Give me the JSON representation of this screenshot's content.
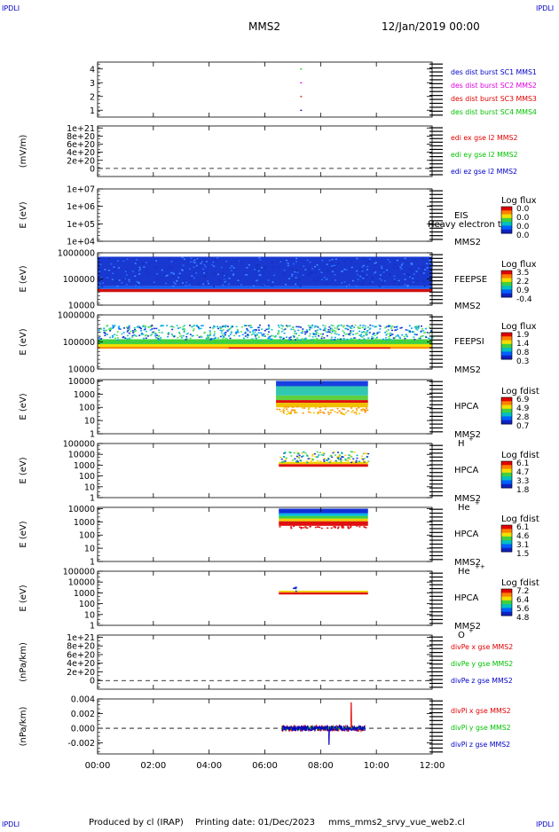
{
  "header": {
    "corner_left": "IPDLI",
    "corner_right": "IPDLI",
    "spacecraft": "MMS2",
    "date": "12/Jan/2019 00:00"
  },
  "footer": {
    "corner_left": "IPDLI",
    "corner_right": "IPDLI",
    "credit": "Produced by cl (IRAP)",
    "printing": "Printing date: 01/Dec/2023",
    "script": "mms_mms2_srvy_vue_web2.cl"
  },
  "colors": {
    "blue": "#0000c8",
    "magenta": "#e000e0",
    "red": "#e00000",
    "green": "#00c000",
    "frame": "#000000"
  },
  "chart_data": [
    {
      "id": "p1",
      "type": "scatter",
      "x_range": [
        0,
        12
      ],
      "ylim": [
        0.5,
        4.5
      ],
      "y_ticks": [
        "1",
        "2",
        "3",
        "4"
      ],
      "ylabel": "",
      "series": [
        {
          "name": "des dist burst SC1 MMS1",
          "color": "#0000c8",
          "x": [
            7.3
          ],
          "y": [
            1
          ]
        },
        {
          "name": "des dist burst SC2 MMS2",
          "color": "#e000e0",
          "x": [
            7.3
          ],
          "y": [
            3
          ]
        },
        {
          "name": "des dist burst SC3 MMS3",
          "color": "#e00000",
          "x": [
            7.3
          ],
          "y": [
            2
          ]
        },
        {
          "name": "des dist burst SC4 MMS4",
          "color": "#00c000",
          "x": [
            7.3
          ],
          "y": [
            4
          ]
        }
      ]
    },
    {
      "id": "p2",
      "type": "line",
      "x_range": [
        0,
        12
      ],
      "ylim": [
        -2e+20,
        1.05e+21
      ],
      "y_ticks": [
        "0",
        "2e+20",
        "4e+20",
        "6e+20",
        "8e+20",
        "1e+21"
      ],
      "y_tick_values": [
        0,
        2e+20,
        4e+20,
        6e+20,
        8e+20,
        1e+21
      ],
      "ylabel": "(mV/m)",
      "zero_line": true,
      "series": [
        {
          "name": "edi ex gse l2 MMS2",
          "color": "#e00000"
        },
        {
          "name": "edi ey gse l2 MMS2",
          "color": "#00c000"
        },
        {
          "name": "edi ez gse l2 MMS2",
          "color": "#0000c8"
        }
      ]
    },
    {
      "id": "p3",
      "type": "heatmap",
      "x_range": [
        0,
        12
      ],
      "ylim_log": [
        4,
        7
      ],
      "y_ticks": [
        "1e+04",
        "1e+05",
        "1e+06",
        "1e+07"
      ],
      "ylabel": "E (eV)",
      "instrument": "EIS",
      "instrument_sub": "Heavy electron to",
      "spacecraft": "MMS2",
      "colorbar_title": "Log flux",
      "colorbar_ticks": [
        "0.0",
        "0.0",
        "0.0",
        "0.0"
      ],
      "bands": []
    },
    {
      "id": "p4",
      "type": "heatmap",
      "x_range": [
        0,
        12
      ],
      "ylim_log": [
        4,
        6
      ],
      "y_ticks": [
        "10000",
        "100000",
        "1000000"
      ],
      "ylabel": "E (eV)",
      "instrument": "FEEPSE",
      "spacecraft": "MMS2",
      "colorbar_title": "Log flux",
      "colorbar_ticks": [
        "3.5",
        "2.2",
        "0.9",
        "-0.4"
      ],
      "bands": [
        {
          "x0": 0.0,
          "x1": 12.0,
          "y0": 4.5,
          "y1": 4.62,
          "color": "#d01010"
        },
        {
          "x0": 0.0,
          "x1": 12.0,
          "y0": 4.62,
          "y1": 4.72,
          "color": "#1060ff"
        },
        {
          "x0": 0.0,
          "x1": 12.0,
          "y0": 4.72,
          "y1": 5.85,
          "color": "#1838d0"
        }
      ],
      "speckle": {
        "x0": 0.0,
        "x1": 12.0,
        "y0": 4.72,
        "y1": 5.85,
        "colors": [
          "#2a6cff",
          "#1530b8",
          "#3f8cff"
        ],
        "count": 380
      }
    },
    {
      "id": "p5",
      "type": "heatmap",
      "x_range": [
        0,
        12
      ],
      "ylim_log": [
        4,
        6
      ],
      "y_ticks": [
        "10000",
        "100000",
        "1000000"
      ],
      "ylabel": "E (eV)",
      "instrument": "FEEPSI",
      "spacecraft": "MMS2",
      "colorbar_title": "Log flux",
      "colorbar_ticks": [
        "1.9",
        "1.4",
        "0.8",
        "0.3"
      ],
      "bands": [
        {
          "x0": 0.0,
          "x1": 12.0,
          "y0": 4.75,
          "y1": 4.82,
          "color": "#ff8c00"
        },
        {
          "x0": 4.7,
          "x1": 10.5,
          "y0": 4.75,
          "y1": 4.8,
          "color": "#e01010"
        },
        {
          "x0": 0.0,
          "x1": 12.0,
          "y0": 4.82,
          "y1": 4.92,
          "color": "#f0e000"
        },
        {
          "x0": 0.0,
          "x1": 12.0,
          "y0": 4.92,
          "y1": 5.1,
          "color": "#40d040"
        }
      ],
      "speckle": {
        "x0": 0.0,
        "x1": 12.0,
        "y0": 5.1,
        "y1": 5.65,
        "colors": [
          "#00a0ff",
          "#1030d0",
          "#20c0c0",
          "#50e050"
        ],
        "count": 700
      }
    },
    {
      "id": "p6",
      "type": "heatmap",
      "x_range": [
        0,
        12
      ],
      "ylim_log": [
        0,
        4.1
      ],
      "y_ticks": [
        "1",
        "10",
        "100",
        "1000",
        "10000"
      ],
      "ylabel": "E (eV)",
      "instrument": "HPCA",
      "spacecraft": "MMS2",
      "species": "H",
      "species_sup": "+",
      "colorbar_title": "Log fdist",
      "colorbar_ticks": [
        "6.9",
        "4.9",
        "2.8",
        "0.7"
      ],
      "bands": [
        {
          "x0": 6.4,
          "x1": 9.7,
          "y0": 2.0,
          "y1": 2.35,
          "color": "#f0c000"
        },
        {
          "x0": 6.4,
          "x1": 9.7,
          "y0": 2.35,
          "y1": 2.55,
          "color": "#e01010"
        },
        {
          "x0": 6.4,
          "x1": 9.7,
          "y0": 2.55,
          "y1": 2.9,
          "color": "#60d040"
        },
        {
          "x0": 6.4,
          "x1": 9.7,
          "y0": 2.9,
          "y1": 3.6,
          "color": "#30c8b0"
        },
        {
          "x0": 6.4,
          "x1": 9.7,
          "y0": 3.6,
          "y1": 4.0,
          "color": "#1840e0"
        }
      ],
      "speckle": {
        "x0": 6.4,
        "x1": 9.7,
        "y0": 1.5,
        "y1": 2.1,
        "colors": [
          "#f0c000",
          "#ff8c00"
        ],
        "count": 90
      }
    },
    {
      "id": "p7",
      "type": "heatmap",
      "x_range": [
        0,
        12
      ],
      "ylim_log": [
        0,
        5
      ],
      "y_ticks": [
        "1",
        "10",
        "100",
        "1000",
        "10000",
        "100000"
      ],
      "ylabel": "E (eV)",
      "instrument": "HPCA",
      "spacecraft": "MMS2",
      "species": "He",
      "species_sup": "+",
      "colorbar_title": "Log fdist",
      "colorbar_ticks": [
        "6.1",
        "4.7",
        "3.3",
        "1.8"
      ],
      "bands": [
        {
          "x0": 6.5,
          "x1": 9.7,
          "y0": 2.85,
          "y1": 3.1,
          "color": "#e01010"
        },
        {
          "x0": 6.5,
          "x1": 9.7,
          "y0": 3.1,
          "y1": 3.3,
          "color": "#f0d000"
        }
      ],
      "speckle": {
        "x0": 6.5,
        "x1": 9.7,
        "y0": 3.3,
        "y1": 4.3,
        "colors": [
          "#50d050",
          "#00b0b0",
          "#1030d0",
          "#f0d000"
        ],
        "count": 140
      }
    },
    {
      "id": "p8",
      "type": "heatmap",
      "x_range": [
        0,
        12
      ],
      "ylim_log": [
        0,
        4.1
      ],
      "y_ticks": [
        "1",
        "10",
        "100",
        "1000",
        "10000"
      ],
      "ylabel": "E (eV)",
      "instrument": "HPCA",
      "spacecraft": "MMS2",
      "species": "He",
      "species_sup": "++",
      "colorbar_title": "Log fdist",
      "colorbar_ticks": [
        "6.1",
        "4.6",
        "3.1",
        "1.5"
      ],
      "bands": [
        {
          "x0": 6.5,
          "x1": 9.7,
          "y0": 2.7,
          "y1": 3.05,
          "color": "#e01010"
        },
        {
          "x0": 6.5,
          "x1": 9.7,
          "y0": 3.05,
          "y1": 3.25,
          "color": "#f0d000"
        },
        {
          "x0": 6.5,
          "x1": 9.7,
          "y0": 3.25,
          "y1": 3.45,
          "color": "#40d040"
        },
        {
          "x0": 6.5,
          "x1": 9.7,
          "y0": 3.45,
          "y1": 3.65,
          "color": "#00b8e0"
        },
        {
          "x0": 6.5,
          "x1": 9.7,
          "y0": 3.65,
          "y1": 4.0,
          "color": "#1030d8"
        }
      ],
      "speckle": {
        "x0": 6.5,
        "x1": 9.7,
        "y0": 2.55,
        "y1": 2.75,
        "colors": [
          "#e01010"
        ],
        "count": 40
      }
    },
    {
      "id": "p9",
      "type": "heatmap",
      "x_range": [
        0,
        12
      ],
      "ylim_log": [
        0,
        5
      ],
      "y_ticks": [
        "1",
        "10",
        "100",
        "1000",
        "10000",
        "100000"
      ],
      "ylabel": "E (eV)",
      "instrument": "HPCA",
      "spacecraft": "MMS2",
      "species": "O",
      "species_sup": "+",
      "colorbar_title": "Log fdist",
      "colorbar_ticks": [
        "7.2",
        "6.4",
        "5.6",
        "4.8"
      ],
      "bands": [
        {
          "x0": 6.5,
          "x1": 9.7,
          "y0": 2.85,
          "y1": 3.05,
          "color": "#e01010"
        },
        {
          "x0": 6.5,
          "x1": 9.7,
          "y0": 3.05,
          "y1": 3.2,
          "color": "#f0d000"
        }
      ],
      "speckle": {
        "x0": 7.0,
        "x1": 7.1,
        "y0": 3.2,
        "y1": 3.6,
        "colors": [
          "#1030d0"
        ],
        "count": 6
      }
    },
    {
      "id": "p10",
      "type": "line",
      "x_range": [
        0,
        12
      ],
      "ylim": [
        -2e+20,
        1.05e+21
      ],
      "y_ticks": [
        "0",
        "2e+20",
        "4e+20",
        "6e+20",
        "8e+20",
        "1e+21"
      ],
      "y_tick_values": [
        0,
        2e+20,
        4e+20,
        6e+20,
        8e+20,
        1e+21
      ],
      "ylabel": "(nPa/km)",
      "zero_line": true,
      "series": [
        {
          "name": "divPe x gse MMS2",
          "color": "#e00000"
        },
        {
          "name": "divPe y gse MMS2",
          "color": "#00c000"
        },
        {
          "name": "divPe z gse MMS2",
          "color": "#0000c8"
        }
      ]
    },
    {
      "id": "p11",
      "type": "line",
      "x_range": [
        0,
        12
      ],
      "ylim": [
        -0.0035,
        0.004
      ],
      "y_ticks": [
        "-0.002",
        "0.000",
        "0.002",
        "0.004"
      ],
      "y_tick_values": [
        -0.002,
        0.0,
        0.002,
        0.004
      ],
      "ylabel": "(nPa/km)",
      "zero_line": true,
      "series": [
        {
          "name": "divPi x gse MMS2",
          "color": "#e00000",
          "x0": 6.6,
          "x1": 9.6,
          "amplitude": 0.00045,
          "spike": {
            "x": 9.1,
            "y": 0.0035
          }
        },
        {
          "name": "divPi y gse MMS2",
          "color": "#00c000",
          "x0": 6.6,
          "x1": 9.6,
          "amplitude": 0.00025
        },
        {
          "name": "divPi z gse MMS2",
          "color": "#0000c8",
          "x0": 6.6,
          "x1": 9.6,
          "amplitude": 0.0004,
          "spike": {
            "x": 8.3,
            "y": -0.0022
          }
        }
      ]
    }
  ],
  "x_axis": {
    "ticks": [
      "00:00",
      "02:00",
      "04:00",
      "06:00",
      "08:00",
      "10:00",
      "12:00"
    ]
  }
}
